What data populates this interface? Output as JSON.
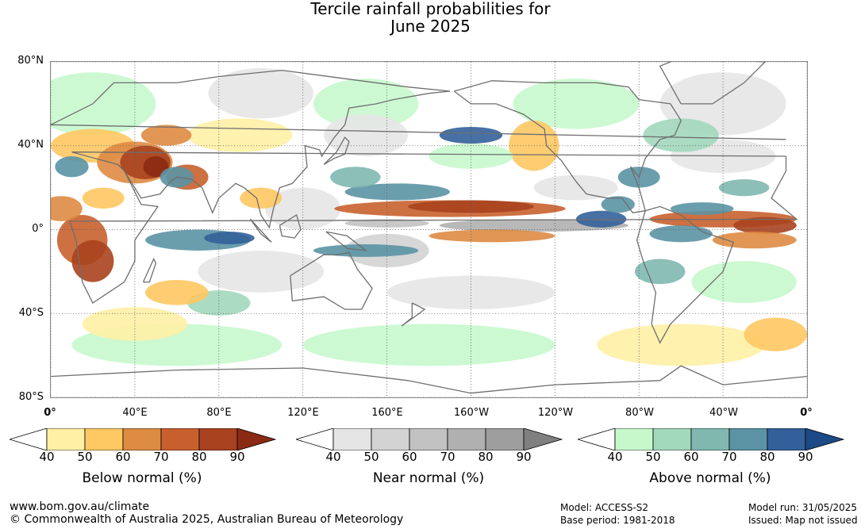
{
  "title": {
    "line1": "Tercile rainfall probabilities for",
    "line2": "June 2025"
  },
  "map": {
    "lat_labels": [
      "80°N",
      "40°N",
      "0°",
      "40°S",
      "80°S"
    ],
    "lat_values": [
      80,
      40,
      0,
      -40,
      -80
    ],
    "lon_labels": [
      "0°",
      "40°E",
      "80°E",
      "120°E",
      "160°E",
      "160°W",
      "120°W",
      "80°W",
      "40°W",
      "0°"
    ],
    "lon_values": [
      0,
      40,
      80,
      120,
      160,
      200,
      240,
      280,
      320,
      360
    ],
    "lon_range": [
      0,
      360
    ],
    "lat_range": [
      -80,
      80
    ],
    "grid": true,
    "colors": {
      "below": [
        "#fff0a5",
        "#fec863",
        "#de8b43",
        "#c8602d",
        "#a8421f",
        "#8b2a13"
      ],
      "near": [
        "#e5e5e5",
        "#d3d3d3",
        "#c2c2c2",
        "#b0b0b0",
        "#9e9e9e",
        "#808080"
      ],
      "above": [
        "#c7f8cc",
        "#a2d8bc",
        "#80b8b0",
        "#5b93a4",
        "#33609a",
        "#1b4a86"
      ]
    }
  },
  "legends": [
    {
      "title": "Below normal (%)",
      "ticks": [
        "40",
        "50",
        "60",
        "70",
        "80",
        "90"
      ],
      "colors": [
        "#fff0a5",
        "#fec863",
        "#de8b43",
        "#c8602d",
        "#a8421f",
        "#8b2a13"
      ]
    },
    {
      "title": "Near normal (%)",
      "ticks": [
        "40",
        "50",
        "60",
        "70",
        "80",
        "90"
      ],
      "colors": [
        "#e5e5e5",
        "#d3d3d3",
        "#c2c2c2",
        "#b0b0b0",
        "#9e9e9e",
        "#808080"
      ]
    },
    {
      "title": "Above normal (%)",
      "ticks": [
        "40",
        "50",
        "60",
        "70",
        "80",
        "90"
      ],
      "colors": [
        "#c7f8cc",
        "#a2d8bc",
        "#80b8b0",
        "#5b93a4",
        "#33609a",
        "#1b4a86"
      ]
    }
  ],
  "footer": {
    "website": "www.bom.gov.au/climate",
    "copyright": "© Commonwealth of Australia 2025, Australian Bureau of Meteorology",
    "model": "Model: ACCESS-S2",
    "base_period": "Base period: 1981-2018",
    "model_run": "Model run: 31/05/2025",
    "issued": "Issued: Map not issued"
  }
}
